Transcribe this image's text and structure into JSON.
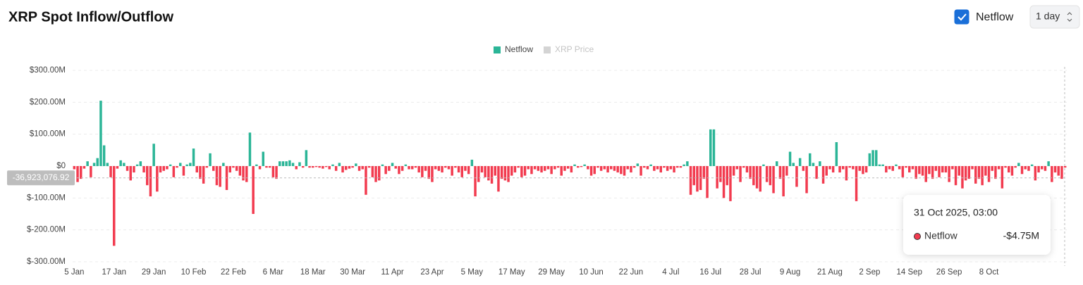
{
  "chart_data": {
    "type": "bar",
    "title": "XRP Spot Inflow/Outflow",
    "controls": {
      "checkbox_label": "Netflow",
      "checked": true,
      "interval": "1 day"
    },
    "legend": [
      {
        "name": "Netflow",
        "color": "#2bb597"
      },
      {
        "name": "XRP Price",
        "color": "#d4d4d4"
      }
    ],
    "colors": {
      "positive": "#2bb597",
      "negative": "#f23b4f"
    },
    "categories": [
      "5 Jan",
      null,
      null,
      null,
      null,
      null,
      null,
      null,
      null,
      null,
      null,
      null,
      "17 Jan",
      null,
      null,
      null,
      null,
      null,
      null,
      null,
      null,
      null,
      null,
      null,
      "29 Jan",
      null,
      null,
      null,
      null,
      null,
      null,
      null,
      null,
      null,
      null,
      null,
      "10 Feb",
      null,
      null,
      null,
      null,
      null,
      null,
      null,
      null,
      null,
      null,
      null,
      "22 Feb",
      null,
      null,
      null,
      null,
      null,
      null,
      null,
      null,
      null,
      null,
      null,
      "6 Mar",
      null,
      null,
      null,
      null,
      null,
      null,
      null,
      null,
      null,
      null,
      null,
      "18 Mar",
      null,
      null,
      null,
      null,
      null,
      null,
      null,
      null,
      null,
      null,
      null,
      "30 Mar",
      null,
      null,
      null,
      null,
      null,
      null,
      null,
      null,
      null,
      null,
      null,
      "11 Apr",
      null,
      null,
      null,
      null,
      null,
      null,
      null,
      null,
      null,
      null,
      null,
      "23 Apr",
      null,
      null,
      null,
      null,
      null,
      null,
      null,
      null,
      null,
      null,
      null,
      "5 May",
      null,
      null,
      null,
      null,
      null,
      null,
      null,
      null,
      null,
      null,
      null,
      "17 May",
      null,
      null,
      null,
      null,
      null,
      null,
      null,
      null,
      null,
      null,
      null,
      "29 May",
      null,
      null,
      null,
      null,
      null,
      null,
      null,
      null,
      null,
      null,
      null,
      "10 Jun",
      null,
      null,
      null,
      null,
      null,
      null,
      null,
      null,
      null,
      null,
      null,
      "22 Jun",
      null,
      null,
      null,
      null,
      null,
      null,
      null,
      null,
      null,
      null,
      null,
      "4 Jul",
      null,
      null,
      null,
      null,
      null,
      null,
      null,
      null,
      null,
      null,
      null,
      "16 Jul",
      null,
      null,
      null,
      null,
      null,
      null,
      null,
      null,
      null,
      null,
      null,
      "28 Jul",
      null,
      null,
      null,
      null,
      null,
      null,
      null,
      null,
      null,
      null,
      null,
      "9 Aug",
      null,
      null,
      null,
      null,
      null,
      null,
      null,
      null,
      null,
      null,
      null,
      "21 Aug",
      null,
      null,
      null,
      null,
      null,
      null,
      null,
      null,
      null,
      null,
      null,
      "2 Sep",
      null,
      null,
      null,
      null,
      null,
      null,
      null,
      null,
      null,
      null,
      null,
      "14 Sep",
      null,
      null,
      null,
      null,
      null,
      null,
      null,
      null,
      null,
      null,
      null,
      "26 Sep",
      null,
      null,
      null,
      null,
      null,
      null,
      null,
      null,
      null,
      null,
      null,
      "8 Oct",
      null,
      null,
      null,
      null,
      null,
      null,
      null,
      null,
      null,
      null,
      null,
      null,
      null,
      null,
      null,
      null,
      null,
      null,
      null,
      null,
      null,
      null,
      null
    ],
    "values": [
      -10,
      -50,
      -40,
      -8,
      15,
      -35,
      10,
      25,
      205,
      65,
      10,
      -35,
      -250,
      -8,
      18,
      10,
      -15,
      -45,
      -20,
      5,
      15,
      -20,
      -60,
      -95,
      70,
      -80,
      -20,
      -15,
      -10,
      5,
      -35,
      -5,
      10,
      -30,
      5,
      10,
      55,
      -20,
      -40,
      -55,
      -5,
      40,
      -15,
      -60,
      -65,
      10,
      -75,
      -20,
      -5,
      -15,
      -30,
      -45,
      -50,
      105,
      -150,
      5,
      -10,
      45,
      -5,
      -5,
      -35,
      -40,
      15,
      15,
      15,
      18,
      10,
      -10,
      12,
      -5,
      50,
      -5,
      -5,
      -3,
      -5,
      -8,
      -3,
      -10,
      5,
      -15,
      10,
      -20,
      -12,
      -8,
      -5,
      8,
      -15,
      -10,
      -90,
      -5,
      -35,
      -50,
      -45,
      5,
      -25,
      -15,
      10,
      -8,
      -25,
      -15,
      5,
      -10,
      -10,
      -5,
      -20,
      -35,
      -15,
      -40,
      -50,
      -10,
      -15,
      -20,
      -5,
      -10,
      -30,
      -5,
      -20,
      -35,
      -15,
      -25,
      20,
      -95,
      -50,
      -20,
      -35,
      -45,
      -55,
      -30,
      -80,
      -40,
      -45,
      -50,
      -30,
      -20,
      -5,
      -35,
      -30,
      -10,
      -25,
      -10,
      -15,
      -20,
      -15,
      -10,
      -25,
      -10,
      -5,
      -30,
      -15,
      -8,
      -20,
      5,
      -5,
      -3,
      5,
      -10,
      -30,
      -25,
      -5,
      -15,
      -10,
      -20,
      -10,
      -15,
      -20,
      -25,
      -30,
      -10,
      -20,
      -5,
      8,
      -30,
      -5,
      -10,
      5,
      -15,
      -10,
      -20,
      -5,
      -15,
      -10,
      -20,
      -5,
      -5,
      5,
      15,
      -90,
      -60,
      -80,
      -75,
      -40,
      -100,
      115,
      115,
      -70,
      -50,
      -100,
      -60,
      -110,
      -30,
      -10,
      -50,
      -5,
      -20,
      -40,
      -60,
      -70,
      -80,
      5,
      -50,
      -60,
      -85,
      15,
      -40,
      -95,
      -30,
      45,
      10,
      -65,
      25,
      -15,
      -85,
      40,
      10,
      -40,
      15,
      -55,
      -30,
      -10,
      -20,
      75,
      -20,
      -10,
      -45,
      -5,
      -10,
      -110,
      -15,
      -25,
      -20,
      40,
      50,
      50,
      5,
      5,
      -20,
      -10,
      -15,
      5,
      -10,
      -35,
      -5,
      -20,
      -10,
      -40,
      -25,
      -30,
      -50,
      -25,
      -40,
      -15,
      -35,
      -20,
      -20,
      -50,
      -10,
      -60,
      -30,
      -70,
      -45,
      -40,
      -10,
      -55,
      -40,
      -60,
      -30,
      -50,
      -15,
      -40,
      -10,
      -70,
      -5,
      -20,
      -30,
      -5,
      10,
      -25,
      -10,
      -15,
      5,
      -45,
      -20,
      -10,
      -15,
      15,
      -50,
      -20,
      -30,
      -40,
      -4.75
    ],
    "ylim": [
      -300,
      300
    ],
    "yticks": [
      {
        "value": 300,
        "label": "$300.00M"
      },
      {
        "value": 200,
        "label": "$200.00M"
      },
      {
        "value": 100,
        "label": "$100.00M"
      },
      {
        "value": 0,
        "label": "$0"
      },
      {
        "value": -100,
        "label": "$-100.00M"
      },
      {
        "value": -200,
        "label": "$-200.00M"
      },
      {
        "value": -300,
        "label": "$-300.00M"
      }
    ],
    "grid": true,
    "crosshair": {
      "value": -36.92307692,
      "label": "-36,923,076.92"
    },
    "tooltip": {
      "date": "31 Oct 2025, 03:00",
      "name": "Netflow",
      "value": -4.75,
      "value_label": "-$4.75M"
    }
  }
}
